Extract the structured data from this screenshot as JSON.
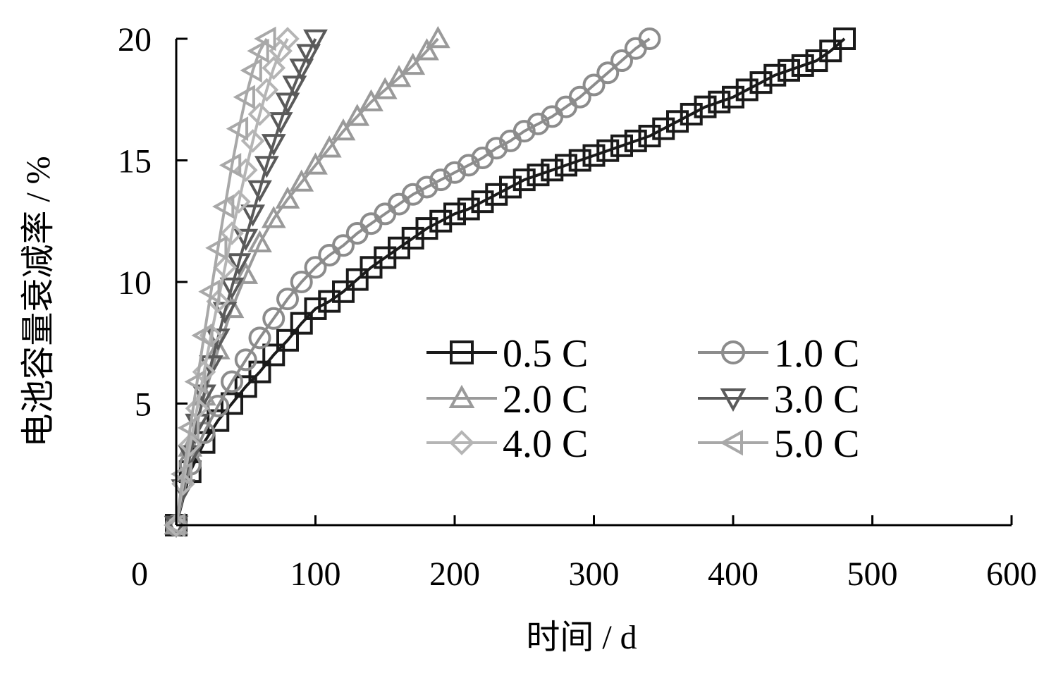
{
  "chart_data": {
    "type": "line",
    "title": "",
    "xlabel": "时间 / d",
    "ylabel": "电池容量衰减率 / %",
    "xlim": [
      0,
      600
    ],
    "ylim": [
      0,
      20
    ],
    "xticks": [
      0,
      100,
      200,
      300,
      400,
      500,
      600
    ],
    "xtick_labels": [
      "0",
      "100",
      "200",
      "300",
      "400",
      "500",
      "600"
    ],
    "yticks": [
      5,
      10,
      15,
      20
    ],
    "ytick_labels": [
      "5",
      "10",
      "15",
      "20"
    ],
    "grid": false,
    "legend_position": "inside-lower-right",
    "series": [
      {
        "name": "0.5 C",
        "marker": "square",
        "color": "#1a1a1a",
        "x": [
          0,
          10,
          20,
          30,
          40,
          50,
          60,
          70,
          80,
          90,
          100,
          110,
          120,
          130,
          140,
          150,
          160,
          170,
          180,
          190,
          200,
          210,
          220,
          230,
          240,
          250,
          260,
          270,
          280,
          290,
          300,
          310,
          320,
          330,
          340,
          350,
          360,
          370,
          380,
          390,
          400,
          410,
          420,
          430,
          440,
          450,
          460,
          470,
          480
        ],
        "y": [
          0,
          2.2,
          3.4,
          4.3,
          5.0,
          5.7,
          6.3,
          7.0,
          7.6,
          8.3,
          8.9,
          9.2,
          9.6,
          10.1,
          10.6,
          11.0,
          11.4,
          11.8,
          12.2,
          12.5,
          12.8,
          13.0,
          13.3,
          13.6,
          13.9,
          14.2,
          14.4,
          14.6,
          14.8,
          15.0,
          15.2,
          15.4,
          15.6,
          15.8,
          16.0,
          16.3,
          16.6,
          16.9,
          17.2,
          17.4,
          17.6,
          17.9,
          18.2,
          18.5,
          18.7,
          18.9,
          19.1,
          19.5,
          20.0
        ]
      },
      {
        "name": "1.0 C",
        "marker": "circle",
        "color": "#8c8c8c",
        "x": [
          0,
          10,
          20,
          30,
          40,
          50,
          60,
          70,
          80,
          90,
          100,
          110,
          120,
          130,
          140,
          150,
          160,
          170,
          180,
          190,
          200,
          210,
          220,
          230,
          240,
          250,
          260,
          270,
          280,
          290,
          300,
          310,
          320,
          330,
          340
        ],
        "y": [
          0,
          2.5,
          3.8,
          4.9,
          5.9,
          6.8,
          7.7,
          8.5,
          9.3,
          10.0,
          10.6,
          11.1,
          11.5,
          12.0,
          12.4,
          12.8,
          13.2,
          13.6,
          13.9,
          14.2,
          14.5,
          14.8,
          15.1,
          15.5,
          15.8,
          16.2,
          16.5,
          16.8,
          17.2,
          17.6,
          18.1,
          18.6,
          19.1,
          19.6,
          20.0
        ]
      },
      {
        "name": "2.0 C",
        "marker": "triangle-up",
        "color": "#9a9a9a",
        "x": [
          0,
          10,
          20,
          30,
          40,
          50,
          60,
          70,
          80,
          90,
          100,
          110,
          120,
          130,
          140,
          150,
          160,
          170,
          180,
          188
        ],
        "y": [
          0,
          3.2,
          5.3,
          7.2,
          8.9,
          10.3,
          11.6,
          12.6,
          13.4,
          14.1,
          14.8,
          15.5,
          16.2,
          16.8,
          17.4,
          17.9,
          18.4,
          18.9,
          19.5,
          20.0
        ]
      },
      {
        "name": "3.0 C",
        "marker": "triangle-down",
        "color": "#5a5a5a",
        "x": [
          0,
          5,
          10,
          15,
          20,
          25,
          30,
          35,
          40,
          45,
          50,
          55,
          60,
          65,
          70,
          75,
          80,
          85,
          90,
          95,
          100
        ],
        "y": [
          0,
          1.5,
          2.9,
          4.2,
          5.4,
          6.6,
          7.7,
          8.8,
          9.8,
          10.8,
          11.8,
          12.8,
          13.8,
          14.8,
          15.7,
          16.6,
          17.4,
          18.1,
          18.8,
          19.4,
          20.0
        ]
      },
      {
        "name": "4.0 C",
        "marker": "diamond",
        "color": "#b5b5b5",
        "x": [
          0,
          5,
          10,
          15,
          20,
          25,
          30,
          35,
          40,
          45,
          50,
          55,
          60,
          65,
          70,
          75,
          80
        ],
        "y": [
          0,
          1.7,
          3.3,
          4.8,
          6.3,
          7.8,
          9.2,
          10.6,
          12.0,
          13.3,
          14.6,
          15.8,
          16.9,
          17.9,
          18.8,
          19.5,
          20.0
        ]
      },
      {
        "name": "5.0 C",
        "marker": "triangle-left",
        "color": "#a8a8a8",
        "x": [
          0,
          5,
          10,
          15,
          20,
          25,
          30,
          35,
          40,
          45,
          50,
          55,
          60,
          65
        ],
        "y": [
          0,
          2.1,
          4.0,
          5.9,
          7.8,
          9.6,
          11.4,
          13.1,
          14.8,
          16.3,
          17.6,
          18.7,
          19.5,
          20.0
        ]
      }
    ]
  }
}
